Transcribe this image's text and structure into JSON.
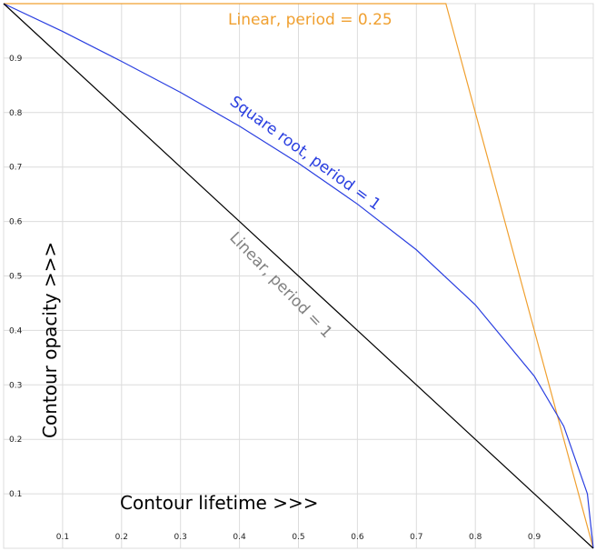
{
  "chart_data": {
    "type": "line",
    "xlabel": "Contour lifetime >>>",
    "ylabel": "Contour opacity >>>",
    "xlim": [
      0,
      1
    ],
    "ylim": [
      0,
      1
    ],
    "grid": true,
    "x_ticks": [
      "0.1",
      "0.2",
      "0.3",
      "0.4",
      "0.5",
      "0.6",
      "0.7",
      "0.8",
      "0.9"
    ],
    "y_ticks": [
      "0.1",
      "0.2",
      "0.3",
      "0.4",
      "0.5",
      "0.6",
      "0.7",
      "0.8",
      "0.9"
    ],
    "series": [
      {
        "name": "Linear, period = 0.25",
        "color": "#f0a030",
        "x": [
          0,
          0.75,
          1
        ],
        "y": [
          1,
          1,
          0
        ]
      },
      {
        "name": "Square root, period = 1",
        "color": "#2a3fe0",
        "x": [
          0,
          0.1,
          0.2,
          0.3,
          0.4,
          0.5,
          0.6,
          0.7,
          0.8,
          0.9,
          0.95,
          0.99,
          1
        ],
        "y": [
          1,
          0.949,
          0.894,
          0.837,
          0.775,
          0.707,
          0.632,
          0.548,
          0.447,
          0.316,
          0.224,
          0.1,
          0
        ]
      },
      {
        "name": "Linear, period = 1",
        "color": "#000000",
        "x": [
          0,
          1
        ],
        "y": [
          1,
          0
        ]
      }
    ],
    "annotations": [
      {
        "text": "Linear, period = 0.25",
        "color": "#f0a030"
      },
      {
        "text": "Square root, period = 1",
        "color": "#2a3fe0"
      },
      {
        "text": "Linear, period = 1",
        "color": "#808080"
      }
    ]
  }
}
